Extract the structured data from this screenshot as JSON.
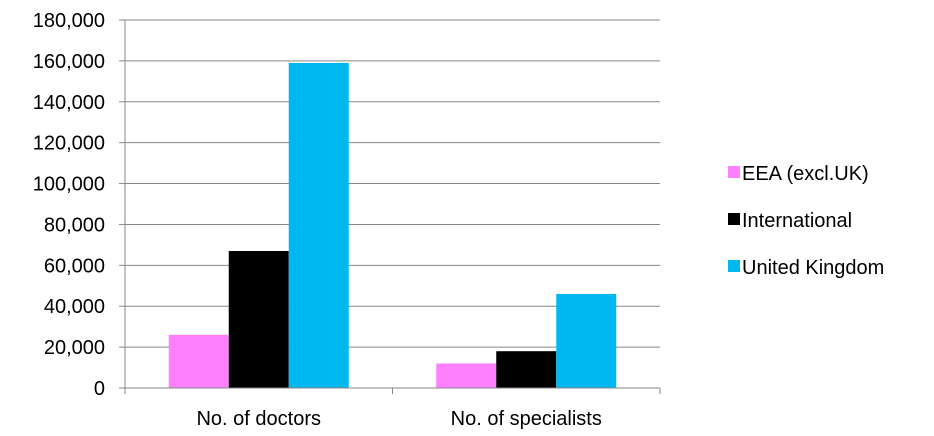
{
  "chart_data": {
    "type": "bar",
    "categories": [
      "No. of doctors",
      "No. of specialists"
    ],
    "series": [
      {
        "name": "EEA (excl.UK)",
        "values": [
          26000,
          12000
        ],
        "color": "#ff80ff"
      },
      {
        "name": "International",
        "values": [
          67000,
          18000
        ],
        "color": "#000000"
      },
      {
        "name": "United Kingdom",
        "values": [
          159000,
          46000
        ],
        "color": "#00b8f0"
      }
    ],
    "ylim": [
      0,
      180000
    ],
    "yticks": [
      0,
      20000,
      40000,
      60000,
      80000,
      100000,
      120000,
      140000,
      160000,
      180000
    ],
    "ytick_labels": [
      "0",
      "20,000",
      "40,000",
      "60,000",
      "80,000",
      "100,000",
      "120,000",
      "140,000",
      "160,000",
      "180,000"
    ],
    "grid": true,
    "legend_position": "right",
    "title": "",
    "xlabel": "",
    "ylabel": ""
  }
}
